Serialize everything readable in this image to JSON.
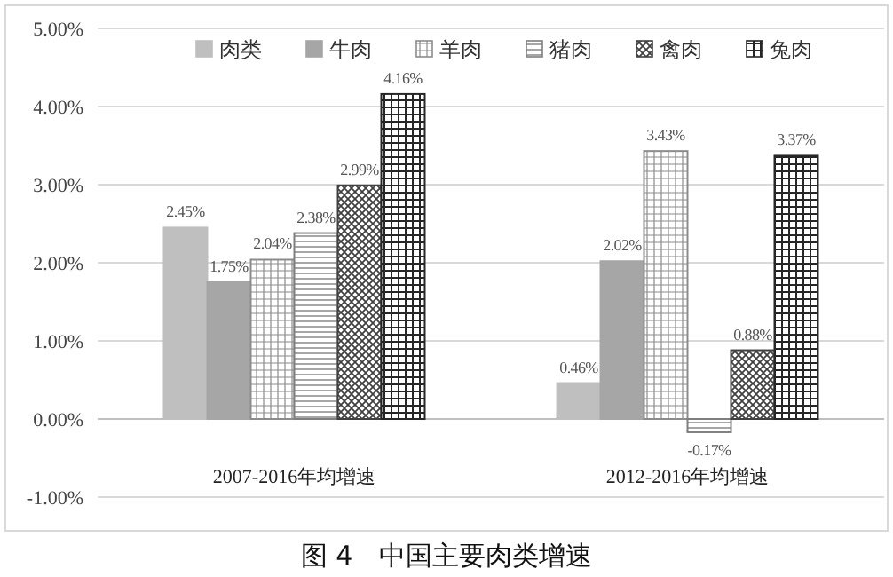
{
  "chart_data": {
    "type": "bar",
    "title": "图 4　中国主要肉类增速",
    "categories": [
      "2007-2016年均增速",
      "2012-2016年均增速"
    ],
    "series": [
      {
        "name": "肉类",
        "color": "#bfbfbf",
        "values": [
          2.45,
          0.46
        ],
        "value_labels": [
          "2.45%",
          "0.46%"
        ]
      },
      {
        "name": "牛肉",
        "color": "#a6a6a6",
        "values": [
          1.75,
          2.02
        ],
        "value_labels": [
          "1.75%",
          "2.02%"
        ]
      },
      {
        "name": "羊肉",
        "color": "#8c8c8c",
        "values": [
          2.04,
          3.43
        ],
        "value_labels": [
          "2.04%",
          "3.43%"
        ]
      },
      {
        "name": "猪肉",
        "color": "#7f7f7f",
        "values": [
          2.38,
          -0.17
        ],
        "value_labels": [
          "2.38%",
          "-0.17%"
        ]
      },
      {
        "name": "禽肉",
        "color": "#404040",
        "values": [
          2.99,
          0.88
        ],
        "value_labels": [
          "2.99%",
          "0.88%"
        ]
      },
      {
        "name": "兔肉",
        "color": "#262626",
        "values": [
          4.16,
          3.37
        ],
        "value_labels": [
          "4.16%",
          "3.37%"
        ]
      }
    ],
    "ylim": [
      -1,
      5
    ],
    "yticks": [
      {
        "value": -1,
        "label": "-1.00%"
      },
      {
        "value": 0,
        "label": "0.00%"
      },
      {
        "value": 1,
        "label": "1.00%"
      },
      {
        "value": 2,
        "label": "2.00%"
      },
      {
        "value": 3,
        "label": "3.00%"
      },
      {
        "value": 4,
        "label": "4.00%"
      },
      {
        "value": 5,
        "label": "5.00%"
      }
    ],
    "grid": "y",
    "legend": "top"
  }
}
